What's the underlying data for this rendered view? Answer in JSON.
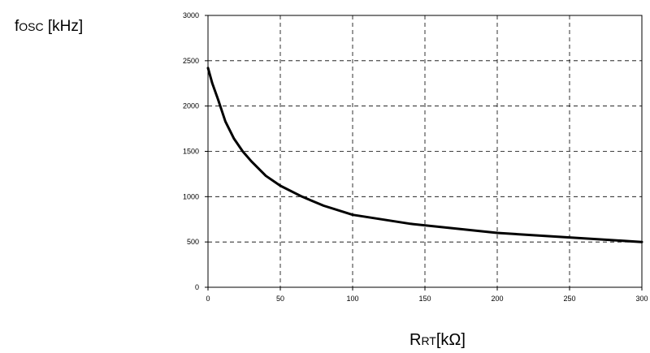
{
  "chart_data": {
    "type": "line",
    "ylabel": {
      "main": "f",
      "sub": "OSC",
      "unit": " [kHz]"
    },
    "xlabel": {
      "main": "R",
      "sub": "RT",
      "unit": "[kΩ]"
    },
    "xlim": [
      0,
      300
    ],
    "ylim": [
      0,
      3000
    ],
    "xticks": [
      0,
      50,
      100,
      150,
      200,
      250,
      300
    ],
    "yticks": [
      0,
      500,
      1000,
      1500,
      2000,
      2500,
      3000
    ],
    "grid": true,
    "series": [
      {
        "x": [
          0,
          3,
          7,
          12,
          18,
          24,
          30,
          40,
          50,
          65,
          80,
          100,
          140,
          200,
          250,
          300
        ],
        "y": [
          2420,
          2250,
          2070,
          1830,
          1640,
          1500,
          1390,
          1230,
          1120,
          1000,
          900,
          800,
          700,
          600,
          550,
          500
        ]
      }
    ]
  }
}
